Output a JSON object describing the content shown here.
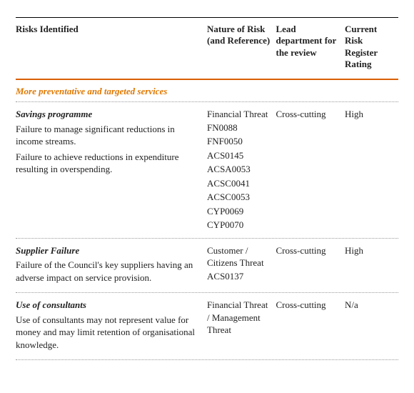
{
  "headers": {
    "risks": "Risks Identified",
    "nature": "Nature of Risk (and Reference)",
    "lead": "Lead department for the review",
    "rating": "Current Risk Register Rating"
  },
  "section_title": "More preventative and targeted services",
  "rows": [
    {
      "title": "Savings programme",
      "desc1": "Failure to manage significant reductions in income streams.",
      "desc2": "Failure to achieve reductions in expenditure resulting in overspending.",
      "nature_threat": "Financial Threat",
      "refs": [
        "FN0088",
        "FNF0050",
        "ACS0145",
        "ACSA0053",
        "ACSC0041",
        "ACSC0053",
        "CYP0069",
        "CYP0070"
      ],
      "lead": "Cross-cutting",
      "rating": "High"
    },
    {
      "title": "Supplier Failure",
      "desc1": "Failure of the Council's key suppliers having an adverse impact on service provision.",
      "desc2": "",
      "nature_threat": "Customer / Citizens Threat",
      "refs": [
        "ACS0137"
      ],
      "lead": "Cross-cutting",
      "rating": "High"
    },
    {
      "title": "Use of consultants",
      "desc1": "Use of consultants may not represent value for money and may limit retention of organisational knowledge.",
      "desc2": "",
      "nature_threat": "Financial Threat / Management Threat",
      "refs": [],
      "lead": "Cross-cutting",
      "rating": "N/a"
    }
  ]
}
